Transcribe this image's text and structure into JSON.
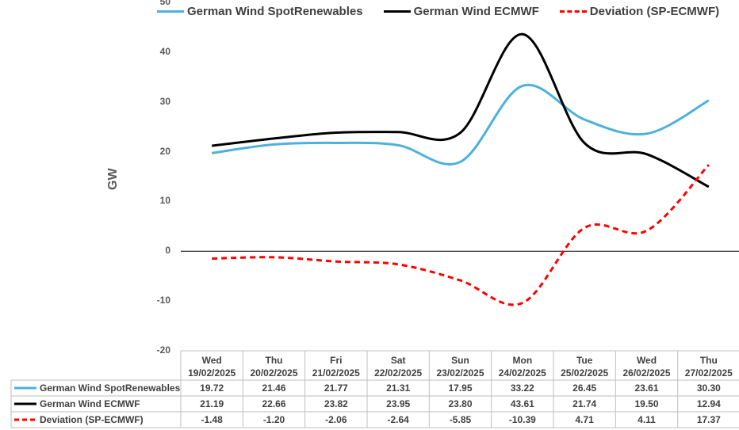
{
  "chart_data": {
    "type": "line",
    "ylabel": "GW",
    "ylim": [
      -20,
      50
    ],
    "yticks": [
      -20,
      -10,
      0,
      10,
      20,
      30,
      40,
      50
    ],
    "legend_position": "top",
    "grid": false,
    "categories": [
      {
        "day": "Wed",
        "date": "19/02/2025"
      },
      {
        "day": "Thu",
        "date": "20/02/2025"
      },
      {
        "day": "Fri",
        "date": "21/02/2025"
      },
      {
        "day": "Sat",
        "date": "22/02/2025"
      },
      {
        "day": "Sun",
        "date": "23/02/2025"
      },
      {
        "day": "Mon",
        "date": "24/02/2025"
      },
      {
        "day": "Tue",
        "date": "25/02/2025"
      },
      {
        "day": "Wed",
        "date": "26/02/2025"
      },
      {
        "day": "Thu",
        "date": "27/02/2025"
      }
    ],
    "series": [
      {
        "name": "German Wind SpotRenewables",
        "color": "#4db0dd",
        "dash": "solid",
        "values": [
          19.72,
          21.46,
          21.77,
          21.31,
          17.95,
          33.22,
          26.45,
          23.61,
          30.3
        ],
        "labels": [
          "19.72",
          "21.46",
          "21.77",
          "21.31",
          "17.95",
          "33.22",
          "26.45",
          "23.61",
          "30.30"
        ]
      },
      {
        "name": "German Wind ECMWF",
        "color": "#000000",
        "dash": "solid",
        "values": [
          21.19,
          22.66,
          23.82,
          23.95,
          23.8,
          43.61,
          21.74,
          19.5,
          12.94
        ],
        "labels": [
          "21.19",
          "22.66",
          "23.82",
          "23.95",
          "23.80",
          "43.61",
          "21.74",
          "19.50",
          "12.94"
        ]
      },
      {
        "name": "Deviation (SP-ECMWF)",
        "color": "#ff0000",
        "dash": "dashed",
        "values": [
          -1.48,
          -1.2,
          -2.06,
          -2.64,
          -5.85,
          -10.39,
          4.71,
          4.11,
          17.37
        ],
        "labels": [
          "-1.48",
          "-1.20",
          "-2.06",
          "-2.64",
          "-5.85",
          "-10.39",
          "4.71",
          "4.11",
          "17.37"
        ]
      }
    ]
  }
}
